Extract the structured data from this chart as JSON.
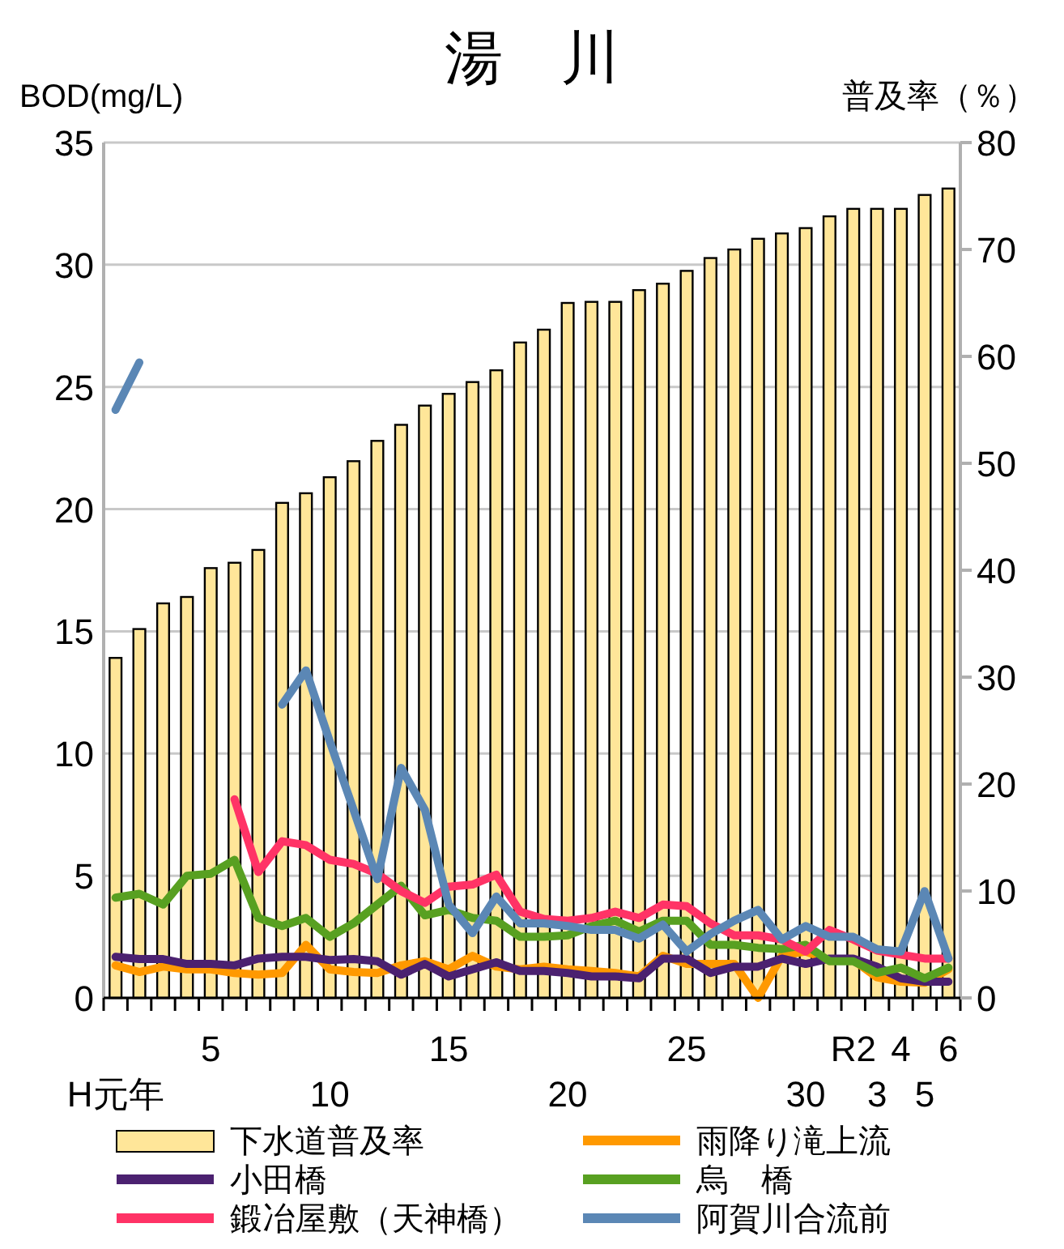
{
  "chart_data": {
    "type": "line",
    "title": "湯　川",
    "ylabel": "BOD(mg/L)",
    "y2label": "普及率（％）",
    "categories": [
      "H元年",
      null,
      null,
      null,
      "5",
      null,
      null,
      null,
      null,
      "10",
      null,
      null,
      null,
      null,
      "15",
      null,
      null,
      null,
      null,
      "20",
      null,
      null,
      null,
      null,
      "25",
      null,
      null,
      null,
      null,
      "30",
      null,
      "R2",
      "3",
      "4",
      "5",
      "6"
    ],
    "ylim": [
      0,
      35
    ],
    "yticks": [
      0,
      5,
      10,
      15,
      20,
      25,
      30,
      35
    ],
    "y2lim": [
      0,
      80
    ],
    "y2ticks": [
      0,
      10,
      20,
      30,
      40,
      50,
      60,
      70,
      80
    ],
    "grid": "y",
    "legend": "bottom",
    "series": [
      {
        "name": "下水道普及率",
        "type": "bar",
        "axis": "y2",
        "color": "#ffe699",
        "values": [
          31.8,
          34.5,
          36.9,
          37.5,
          40.2,
          40.7,
          41.9,
          46.3,
          47.2,
          48.7,
          50.2,
          52.1,
          53.6,
          55.4,
          56.5,
          57.6,
          58.7,
          61.3,
          62.5,
          65.0,
          65.1,
          65.1,
          66.2,
          66.8,
          68.0,
          69.2,
          70.0,
          71.0,
          71.5,
          72.0,
          73.1,
          73.8,
          73.8,
          73.8,
          75.1,
          75.7
        ]
      },
      {
        "name": "雨降り滝上流",
        "color": "#ff9900",
        "values": [
          1.33,
          1.06,
          1.28,
          1.17,
          1.17,
          1.02,
          0.95,
          1.02,
          2.17,
          1.17,
          1.06,
          1.02,
          1.33,
          1.5,
          1.17,
          1.72,
          1.28,
          1.17,
          1.28,
          1.17,
          1.1,
          1.02,
          0.88,
          1.72,
          1.39,
          1.39,
          1.39,
          0.0,
          1.72,
          1.9,
          1.55,
          1.55,
          0.84,
          0.66,
          0.62,
          1.17
        ]
      },
      {
        "name": "小田橋",
        "color": "#4b2170",
        "values": [
          1.68,
          1.59,
          1.59,
          1.39,
          1.39,
          1.33,
          1.61,
          1.68,
          1.68,
          1.55,
          1.59,
          1.5,
          0.95,
          1.39,
          0.88,
          1.17,
          1.46,
          1.1,
          1.1,
          1.02,
          0.88,
          0.88,
          0.8,
          1.61,
          1.61,
          1.02,
          1.28,
          1.28,
          1.61,
          1.39,
          1.61,
          1.61,
          1.28,
          0.8,
          0.66,
          0.66
        ]
      },
      {
        "name": "烏　橋",
        "color": "#58a021",
        "values": [
          4.1,
          4.26,
          3.82,
          5.0,
          5.08,
          5.65,
          3.27,
          2.94,
          3.27,
          2.5,
          3.05,
          3.82,
          4.59,
          3.38,
          3.6,
          3.27,
          3.16,
          2.5,
          2.5,
          2.56,
          2.94,
          3.16,
          2.72,
          3.16,
          3.16,
          2.17,
          2.17,
          2.05,
          2.0,
          2.17,
          1.5,
          1.5,
          1.02,
          1.24,
          0.8,
          1.24
        ]
      },
      {
        "name": "鍛冶屋敷（天神橋）",
        "color": "#ff3366",
        "values": [
          null,
          null,
          null,
          null,
          null,
          8.13,
          5.15,
          6.41,
          6.25,
          5.65,
          5.48,
          5.08,
          4.37,
          3.89,
          4.55,
          4.64,
          5.04,
          3.53,
          3.23,
          3.16,
          3.27,
          3.53,
          3.27,
          3.82,
          3.75,
          3.05,
          2.56,
          2.56,
          2.39,
          1.9,
          2.78,
          2.39,
          1.94,
          1.77,
          1.61,
          1.61
        ]
      },
      {
        "name": "阿賀川合流前",
        "color": "#5b87b5",
        "values": [
          24.06,
          26.0,
          null,
          null,
          null,
          null,
          null,
          12.0,
          13.4,
          10.5,
          7.7,
          4.86,
          9.41,
          7.69,
          3.82,
          2.65,
          4.15,
          3.05,
          3.05,
          2.94,
          2.78,
          2.78,
          2.43,
          3.0,
          1.9,
          2.61,
          3.16,
          3.6,
          2.39,
          2.94,
          2.5,
          2.5,
          1.99,
          1.9,
          4.37,
          1.61
        ]
      }
    ]
  }
}
